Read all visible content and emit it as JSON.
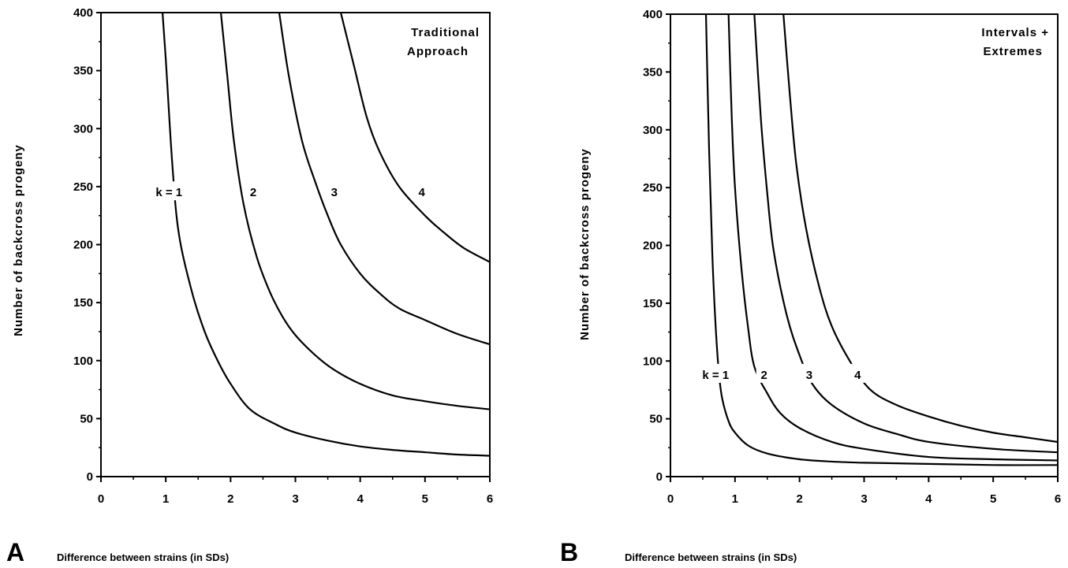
{
  "chart_data": [
    {
      "type": "line",
      "panel_label": "A",
      "title_lines": [
        "Traditional",
        "Approach"
      ],
      "xlabel": "Difference between strains (in SDs)",
      "ylabel": "Number  of  backcross  progeny",
      "xlim": [
        0,
        6
      ],
      "ylim": [
        0,
        400
      ],
      "x_ticks": [
        "0",
        "1",
        "2",
        "3",
        "4",
        "5",
        "6"
      ],
      "y_ticks": [
        "0",
        "50",
        "100",
        "150",
        "200",
        "250",
        "300",
        "350",
        "400"
      ],
      "grid": false,
      "series": [
        {
          "name": "k = 1",
          "x": [
            0.95,
            1.0,
            1.1,
            1.2,
            1.4,
            1.6,
            1.8,
            2.0,
            2.3,
            2.7,
            3.0,
            3.5,
            4.0,
            4.5,
            5.0,
            5.5,
            6.0
          ],
          "y": [
            400,
            360,
            270,
            210,
            160,
            125,
            100,
            80,
            58,
            45,
            38,
            31,
            26,
            23,
            21,
            19,
            18
          ]
        },
        {
          "name": "2",
          "x": [
            1.85,
            1.95,
            2.05,
            2.2,
            2.4,
            2.6,
            2.8,
            3.0,
            3.3,
            3.6,
            4.0,
            4.5,
            5.0,
            5.5,
            6.0
          ],
          "y": [
            400,
            345,
            290,
            235,
            190,
            160,
            138,
            122,
            105,
            92,
            80,
            70,
            65,
            61,
            58
          ]
        },
        {
          "name": "3",
          "x": [
            2.75,
            2.9,
            3.1,
            3.3,
            3.5,
            3.7,
            4.0,
            4.3,
            4.6,
            5.0,
            5.5,
            6.0
          ],
          "y": [
            400,
            345,
            290,
            255,
            225,
            200,
            175,
            158,
            145,
            135,
            123,
            114
          ]
        },
        {
          "name": "4",
          "x": [
            3.7,
            3.9,
            4.1,
            4.3,
            4.6,
            5.0,
            5.3,
            5.6,
            6.0
          ],
          "y": [
            400,
            355,
            310,
            280,
            250,
            225,
            210,
            197,
            185
          ]
        }
      ],
      "label_positions": [
        {
          "text": "k = 1",
          "x": 1.05,
          "y": 245
        },
        {
          "text": "2",
          "x": 2.35,
          "y": 245
        },
        {
          "text": "3",
          "x": 3.6,
          "y": 245
        },
        {
          "text": "4",
          "x": 4.95,
          "y": 245
        }
      ]
    },
    {
      "type": "line",
      "panel_label": "B",
      "title_lines": [
        "Intervals  +",
        "Extremes"
      ],
      "xlabel": "Difference between strains (in SDs)",
      "ylabel": "Number  of  backcross  progeny",
      "xlim": [
        0,
        6
      ],
      "ylim": [
        0,
        400
      ],
      "x_ticks": [
        "0",
        "1",
        "2",
        "3",
        "4",
        "5",
        "6"
      ],
      "y_ticks": [
        "0",
        "50",
        "100",
        "150",
        "200",
        "250",
        "300",
        "350",
        "400"
      ],
      "grid": false,
      "series": [
        {
          "name": "k = 1",
          "x": [
            0.55,
            0.6,
            0.65,
            0.7,
            0.75,
            0.8,
            0.9,
            1.0,
            1.2,
            1.5,
            2.0,
            2.5,
            3.0,
            4.0,
            5.0,
            6.0
          ],
          "y": [
            400,
            280,
            190,
            130,
            90,
            68,
            48,
            38,
            27,
            20,
            15,
            13,
            12,
            11,
            10,
            10
          ]
        },
        {
          "name": "2",
          "x": [
            0.9,
            0.95,
            1.0,
            1.1,
            1.2,
            1.3,
            1.5,
            1.7,
            2.0,
            2.5,
            3.0,
            4.0,
            5.0,
            6.0
          ],
          "y": [
            400,
            310,
            250,
            180,
            130,
            95,
            72,
            55,
            42,
            30,
            24,
            17,
            15,
            14
          ]
        },
        {
          "name": "3",
          "x": [
            1.3,
            1.4,
            1.5,
            1.6,
            1.8,
            2.0,
            2.2,
            2.5,
            3.0,
            3.5,
            4.0,
            5.0,
            6.0
          ],
          "y": [
            400,
            310,
            245,
            195,
            140,
            105,
            80,
            62,
            46,
            37,
            30,
            24,
            21
          ]
        },
        {
          "name": "4",
          "x": [
            1.75,
            1.85,
            1.95,
            2.1,
            2.3,
            2.5,
            2.8,
            3.1,
            3.5,
            4.0,
            4.5,
            5.0,
            5.5,
            6.0
          ],
          "y": [
            400,
            330,
            270,
            215,
            165,
            130,
            98,
            75,
            62,
            52,
            44,
            38,
            34,
            30
          ]
        }
      ],
      "label_positions": [
        {
          "text": "k = 1",
          "x": 0.7,
          "y": 88
        },
        {
          "text": "2",
          "x": 1.45,
          "y": 88
        },
        {
          "text": "3",
          "x": 2.15,
          "y": 88
        },
        {
          "text": "4",
          "x": 2.9,
          "y": 88
        }
      ]
    }
  ]
}
